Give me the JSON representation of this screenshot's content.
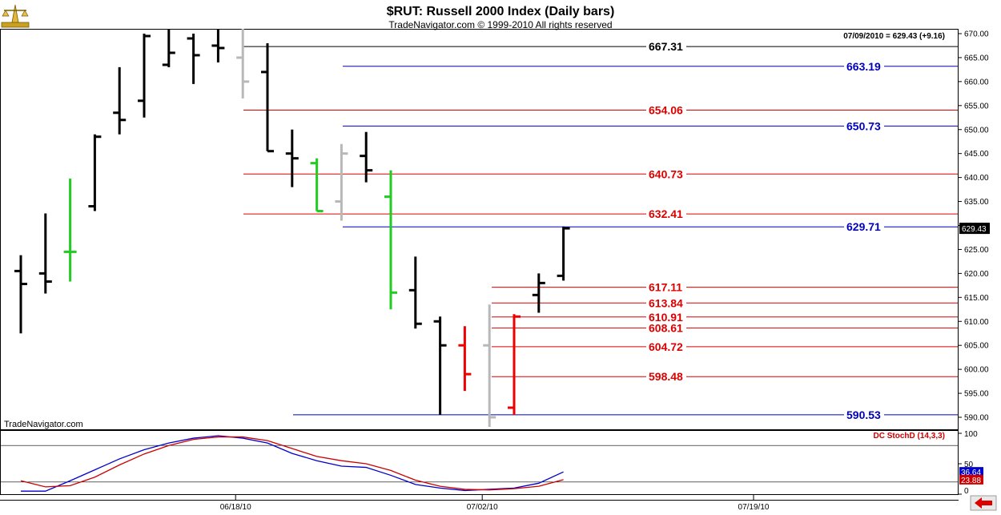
{
  "header": {
    "title": "$RUT:  Russell 2000 Index  (Daily bars)",
    "subtitle": "TradeNavigator.com © 1999-2010 All rights reserved",
    "info": "07/09/2010 = 629.43 (+9.16)",
    "watermark": "TradeNavigator.com",
    "logo_icon": "gold-scale-logo-icon",
    "nav_icon": "red-left-arrow-icon"
  },
  "colors": {
    "up_bar": "#000000",
    "down_bar_gray": "#b8b8b8",
    "green_bar": "#22cc22",
    "red_bar": "#ee0000",
    "red_level": "#dd0000",
    "blue_level": "#0000bb",
    "black_level": "#000000",
    "stoch_k": "#0000cc",
    "stoch_d": "#cc0000"
  },
  "chart_data": [
    {
      "type": "line",
      "title": "$RUT:  Russell 2000 Index  (Daily bars)",
      "ylim": [
        587,
        671
      ],
      "y_ticks": [
        590,
        595,
        600,
        605,
        610,
        615,
        620,
        625,
        630,
        635,
        640,
        645,
        650,
        655,
        660,
        665,
        670
      ],
      "y_tick_labels": [
        "590.00",
        "595.00",
        "600.00",
        "605.00",
        "610.00",
        "615.00",
        "620.00",
        "625.00",
        "630.00",
        "635.00",
        "640.00",
        "645.00",
        "650.00",
        "655.00",
        "660.00",
        "665.00",
        "670.00"
      ],
      "x_labels": [
        {
          "text": "06/18/10",
          "bar": 9
        },
        {
          "text": "07/02/10",
          "bar": 19
        },
        {
          "text": "07/19/10",
          "bar": 30
        }
      ],
      "last_price_label": "629.43",
      "bars": [
        {
          "open": 620.5,
          "high": 623.8,
          "low": 607.5,
          "close": 617.8,
          "color": "black"
        },
        {
          "open": 620.0,
          "high": 632.5,
          "low": 615.8,
          "close": 618.3,
          "color": "black"
        },
        {
          "open": 624.5,
          "high": 639.8,
          "low": 618.3,
          "close": 624.5,
          "color": "green"
        },
        {
          "open": 634.0,
          "high": 649.0,
          "low": 633.0,
          "close": 648.5,
          "color": "black"
        },
        {
          "open": 653.5,
          "high": 663.0,
          "low": 649.0,
          "close": 652.0,
          "color": "black"
        },
        {
          "open": 656.0,
          "high": 670.0,
          "low": 652.5,
          "close": 669.5,
          "color": "black"
        },
        {
          "open": 663.5,
          "high": 671.0,
          "low": 663.0,
          "close": 666.0,
          "color": "black"
        },
        {
          "open": 669.0,
          "high": 670.0,
          "low": 659.5,
          "close": 665.5,
          "color": "black"
        },
        {
          "open": 667.5,
          "high": 671.0,
          "low": 664.0,
          "close": 667.0,
          "color": "black"
        },
        {
          "open": 665.0,
          "high": 671.0,
          "low": 656.5,
          "close": 660.0,
          "color": "gray"
        },
        {
          "open": 662.0,
          "high": 668.0,
          "low": 645.5,
          "close": 645.5,
          "color": "black"
        },
        {
          "open": 645.0,
          "high": 650.0,
          "low": 638.0,
          "close": 644.0,
          "color": "black"
        },
        {
          "open": 643.0,
          "high": 644.0,
          "low": 633.0,
          "close": 633.0,
          "color": "green"
        },
        {
          "open": 635.0,
          "high": 647.0,
          "low": 631.0,
          "close": 645.0,
          "color": "gray"
        },
        {
          "open": 644.5,
          "high": 649.5,
          "low": 639.0,
          "close": 641.5,
          "color": "black"
        },
        {
          "open": 636.0,
          "high": 641.5,
          "low": 612.5,
          "close": 616.0,
          "color": "green"
        },
        {
          "open": 616.5,
          "high": 623.5,
          "low": 608.5,
          "close": 609.5,
          "color": "black"
        },
        {
          "open": 610.0,
          "high": 611.0,
          "low": 590.5,
          "close": 605.0,
          "color": "black"
        },
        {
          "open": 605.0,
          "high": 609.0,
          "low": 595.5,
          "close": 599.0,
          "color": "red"
        },
        {
          "open": 605.0,
          "high": 613.5,
          "low": 588.0,
          "close": 590.0,
          "color": "gray"
        },
        {
          "open": 592.0,
          "high": 611.5,
          "low": 590.5,
          "close": 611.0,
          "color": "red"
        },
        {
          "open": 615.5,
          "high": 620.0,
          "low": 611.8,
          "close": 618.0,
          "color": "black"
        },
        {
          "open": 619.5,
          "high": 629.8,
          "low": 618.5,
          "close": 629.4,
          "color": "black"
        }
      ],
      "levels": [
        {
          "value": 667.31,
          "label": "667.31",
          "color": "black",
          "x0": 304,
          "label_col": "mid"
        },
        {
          "value": 663.19,
          "label": "663.19",
          "color": "blue",
          "x0": 428,
          "label_col": "right"
        },
        {
          "value": 654.06,
          "label": "654.06",
          "color": "red",
          "x0": 304,
          "label_col": "mid"
        },
        {
          "value": 650.73,
          "label": "650.73",
          "color": "blue",
          "x0": 428,
          "label_col": "right"
        },
        {
          "value": 640.73,
          "label": "640.73",
          "color": "red",
          "x0": 304,
          "label_col": "mid"
        },
        {
          "value": 632.41,
          "label": "632.41",
          "color": "red",
          "x0": 304,
          "label_col": "mid"
        },
        {
          "value": 629.71,
          "label": "629.71",
          "color": "blue",
          "x0": 428,
          "label_col": "right"
        },
        {
          "value": 617.11,
          "label": "617.11",
          "color": "red",
          "x0": 614,
          "label_col": "mid"
        },
        {
          "value": 613.84,
          "label": "613.84",
          "color": "red",
          "x0": 614,
          "label_col": "mid"
        },
        {
          "value": 610.91,
          "label": "610.91",
          "color": "red",
          "x0": 614,
          "label_col": "mid"
        },
        {
          "value": 608.61,
          "label": "608.61",
          "color": "red",
          "x0": 614,
          "label_col": "mid"
        },
        {
          "value": 604.72,
          "label": "604.72",
          "color": "red",
          "x0": 614,
          "label_col": "mid"
        },
        {
          "value": 598.48,
          "label": "598.48",
          "color": "red",
          "x0": 614,
          "label_col": "mid"
        },
        {
          "value": 590.53,
          "label": "590.53",
          "color": "blue",
          "x0": 366,
          "label_col": "right"
        }
      ]
    },
    {
      "type": "line",
      "title": "DC StochD (14,3,3)",
      "ylim": [
        0,
        100
      ],
      "y_ticks": [
        100,
        50,
        0
      ],
      "y_tick_labels": [
        "100",
        "50",
        "0"
      ],
      "ref_lines": [
        80,
        20
      ],
      "readouts": [
        {
          "label": "36.64",
          "value": 36.64,
          "color": "blue"
        },
        {
          "label": "23.88",
          "value": 23.88,
          "color": "red"
        }
      ],
      "series": [
        {
          "color": "blue",
          "values": [
            5,
            5,
            22,
            40,
            58,
            73,
            84,
            92,
            96,
            92,
            84,
            67,
            55,
            46,
            44,
            31,
            16,
            10,
            6,
            8,
            10,
            18,
            36.64
          ]
        },
        {
          "color": "red",
          "values": [
            22,
            12,
            14,
            28,
            48,
            66,
            80,
            90,
            94,
            94,
            88,
            75,
            62,
            55,
            50,
            39,
            23,
            13,
            8,
            7,
            9,
            13,
            23.88
          ]
        }
      ]
    }
  ]
}
